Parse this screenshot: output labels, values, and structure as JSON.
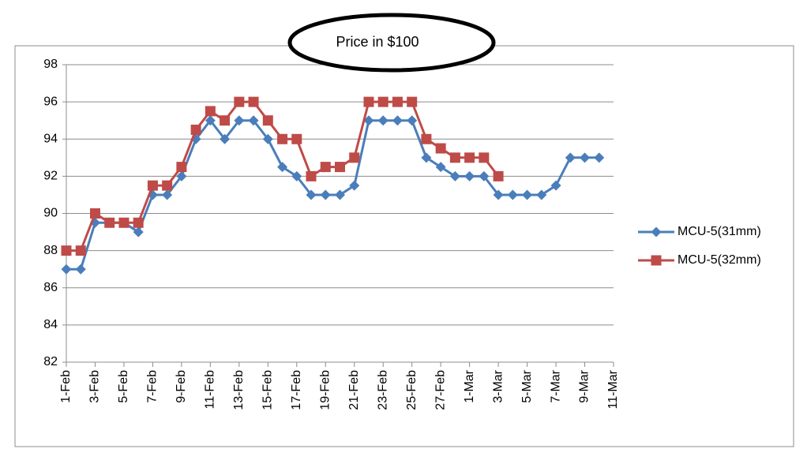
{
  "chart_data": {
    "type": "line",
    "title": "Price in $100",
    "xlabel": "",
    "ylabel": "",
    "ylim": [
      82,
      98
    ],
    "yticks": [
      82,
      84,
      86,
      88,
      90,
      92,
      94,
      96,
      98
    ],
    "grid": true,
    "legend_position": "right",
    "x": [
      "1-Feb",
      "2-Feb",
      "3-Feb",
      "4-Feb",
      "5-Feb",
      "6-Feb",
      "7-Feb",
      "8-Feb",
      "9-Feb",
      "10-Feb",
      "11-Feb",
      "12-Feb",
      "13-Feb",
      "14-Feb",
      "15-Feb",
      "16-Feb",
      "17-Feb",
      "18-Feb",
      "19-Feb",
      "20-Feb",
      "21-Feb",
      "22-Feb",
      "23-Feb",
      "24-Feb",
      "25-Feb",
      "26-Feb",
      "27-Feb",
      "28-Feb",
      "1-Mar",
      "2-Mar",
      "3-Mar",
      "4-Mar",
      "5-Mar",
      "6-Mar",
      "7-Mar",
      "8-Mar",
      "9-Mar",
      "10-Mar",
      "11-Mar"
    ],
    "xtick_labels": [
      "1-Feb",
      "3-Feb",
      "5-Feb",
      "7-Feb",
      "9-Feb",
      "11-Feb",
      "13-Feb",
      "15-Feb",
      "17-Feb",
      "19-Feb",
      "21-Feb",
      "23-Feb",
      "25-Feb",
      "27-Feb",
      "1-Mar",
      "3-Mar",
      "5-Mar",
      "7-Mar",
      "9-Mar",
      "11-Mar"
    ],
    "series": [
      {
        "name": "MCU-5(31mm)",
        "color": "#4a7ebb",
        "marker": "diamond",
        "values": [
          87,
          87,
          89.5,
          89.5,
          89.5,
          89,
          91,
          91,
          92,
          94,
          95,
          94,
          95,
          95,
          94,
          92.5,
          92,
          91,
          91,
          91,
          91.5,
          95,
          95,
          95,
          95,
          93,
          92.5,
          92,
          92,
          92,
          91,
          91,
          91,
          91,
          91.5,
          93,
          93,
          93,
          null
        ]
      },
      {
        "name": "MCU-5(32mm)",
        "color": "#be4b48",
        "marker": "square",
        "values": [
          88,
          88,
          90,
          89.5,
          89.5,
          89.5,
          91.5,
          91.5,
          92.5,
          94.5,
          95.5,
          95,
          96,
          96,
          95,
          94,
          94,
          92,
          92.5,
          92.5,
          93,
          96,
          96,
          96,
          96,
          94,
          93.5,
          93,
          93,
          93,
          92,
          null,
          null,
          null,
          null,
          null,
          null,
          null,
          null
        ]
      }
    ]
  }
}
